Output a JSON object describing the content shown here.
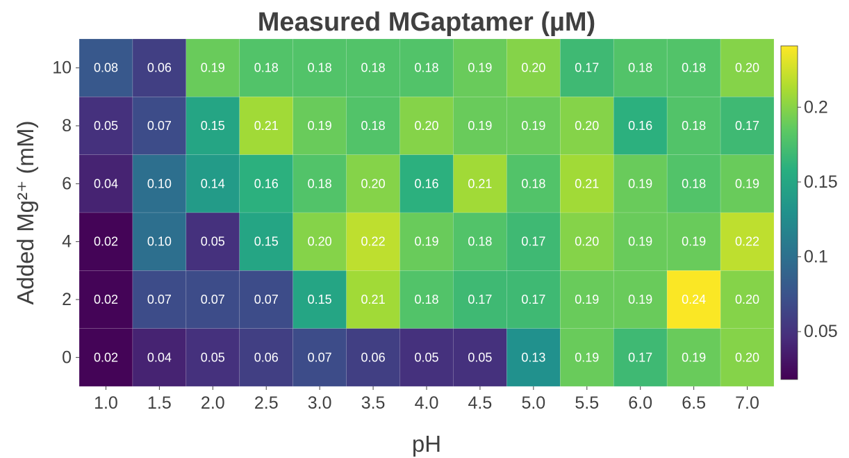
{
  "chart_data": {
    "type": "heatmap",
    "title": "Measured MGaptamer (µM)",
    "xlabel": "pH",
    "ylabel": "Added Mg²⁺ (mM)",
    "x_categories": [
      "1.0",
      "1.5",
      "2.0",
      "2.5",
      "3.0",
      "3.5",
      "4.0",
      "4.5",
      "5.0",
      "5.5",
      "6.0",
      "6.5",
      "7.0"
    ],
    "y_categories": [
      "10",
      "8",
      "6",
      "4",
      "2",
      "0"
    ],
    "values": [
      [
        0.08,
        0.06,
        0.19,
        0.18,
        0.18,
        0.18,
        0.18,
        0.19,
        0.2,
        0.17,
        0.18,
        0.18,
        0.2
      ],
      [
        0.05,
        0.07,
        0.15,
        0.21,
        0.19,
        0.18,
        0.2,
        0.19,
        0.19,
        0.2,
        0.16,
        0.18,
        0.17
      ],
      [
        0.04,
        0.1,
        0.14,
        0.16,
        0.18,
        0.2,
        0.16,
        0.21,
        0.18,
        0.21,
        0.19,
        0.18,
        0.19
      ],
      [
        0.02,
        0.1,
        0.05,
        0.15,
        0.2,
        0.22,
        0.19,
        0.18,
        0.17,
        0.2,
        0.19,
        0.19,
        0.22
      ],
      [
        0.02,
        0.07,
        0.07,
        0.07,
        0.15,
        0.21,
        0.18,
        0.17,
        0.17,
        0.19,
        0.19,
        0.24,
        0.2
      ],
      [
        0.02,
        0.04,
        0.05,
        0.06,
        0.07,
        0.06,
        0.05,
        0.05,
        0.13,
        0.19,
        0.17,
        0.19,
        0.2
      ]
    ],
    "value_labels": [
      [
        "0.08",
        "0.06",
        "0.19",
        "0.18",
        "0.18",
        "0.18",
        "0.18",
        "0.19",
        "0.20",
        "0.17",
        "0.18",
        "0.18",
        "0.20"
      ],
      [
        "0.05",
        "0.07",
        "0.15",
        "0.21",
        "0.19",
        "0.18",
        "0.20",
        "0.19",
        "0.19",
        "0.20",
        "0.16",
        "0.18",
        "0.17"
      ],
      [
        "0.04",
        "0.10",
        "0.14",
        "0.16",
        "0.18",
        "0.20",
        "0.16",
        "0.21",
        "0.18",
        "0.21",
        "0.19",
        "0.18",
        "0.19"
      ],
      [
        "0.02",
        "0.10",
        "0.05",
        "0.15",
        "0.20",
        "0.22",
        "0.19",
        "0.18",
        "0.17",
        "0.20",
        "0.19",
        "0.19",
        "0.22"
      ],
      [
        "0.02",
        "0.07",
        "0.07",
        "0.07",
        "0.15",
        "0.21",
        "0.18",
        "0.17",
        "0.17",
        "0.19",
        "0.19",
        "0.24",
        "0.20"
      ],
      [
        "0.02",
        "0.04",
        "0.05",
        "0.06",
        "0.07",
        "0.06",
        "0.05",
        "0.05",
        "0.13",
        "0.19",
        "0.17",
        "0.19",
        "0.20"
      ]
    ],
    "colormap": "viridis",
    "colorbar": {
      "range": [
        0.018,
        0.241
      ],
      "ticks": [
        0.05,
        0.1,
        0.15,
        0.2
      ],
      "tick_labels": [
        "0.05",
        "0.1",
        "0.15",
        "0.2"
      ],
      "position": "right"
    },
    "colors": {
      "text": "#404040",
      "cell_text": "#ffffff",
      "cell_border": "#ffffff"
    }
  }
}
